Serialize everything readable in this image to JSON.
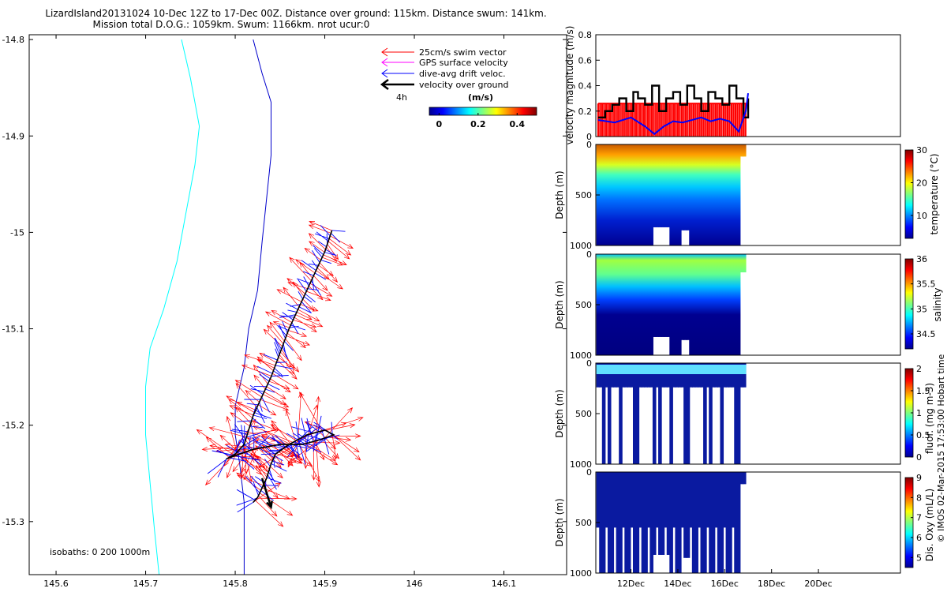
{
  "title": {
    "line1": "LizardIsland20131024 10-Dec 12Z to 17-Dec 00Z. Distance over ground: 115km. Distance swum: 141km.",
    "line2": "Mission total D.O.G.: 1059km. Swum: 1166km. nrot ucur:0"
  },
  "credit": "© IMOS 02-Mar-2015 17:53:00 Hobart time",
  "colors": {
    "swim": "#ff0000",
    "gps": "#ff00ff",
    "drift": "#0000ff",
    "ground": "#000000",
    "isobath_200": "#00ffff",
    "isobath_1000": "#0000cc"
  },
  "chart_data": [
    {
      "type": "line",
      "name": "track map",
      "x_ticks": [
        "145.6",
        "145.7",
        "145.8",
        "145.9",
        "146",
        "146.1"
      ],
      "y_ticks": [
        "-14.8",
        "-14.9",
        "-15",
        "-15.1",
        "-15.2",
        "-15.3"
      ],
      "xlim": [
        145.57,
        146.17
      ],
      "ylim": [
        -15.355,
        -14.795
      ],
      "legend": {
        "items": [
          "25cm/s swim vector",
          "GPS surface velocity",
          "dive-avg drift veloc.",
          "velocity over ground"
        ],
        "time_label": "4h",
        "colorbar_title": "(m/s)",
        "colorbar_ticks": [
          "0",
          "0.2",
          "0.4"
        ],
        "colorbar_range": [
          -0.05,
          0.5
        ]
      },
      "isobaths_label": "isobaths: 0   200   1000m",
      "series": [
        {
          "name": "200m isobath",
          "x": [
            145.74,
            145.75,
            145.76,
            145.755,
            145.745,
            145.735,
            145.72,
            145.705,
            145.7,
            145.7,
            145.705,
            145.71,
            145.715
          ],
          "y": [
            -14.8,
            -14.84,
            -14.89,
            -14.93,
            -14.98,
            -15.03,
            -15.08,
            -15.12,
            -15.16,
            -15.21,
            -15.26,
            -15.31,
            -15.355
          ]
        },
        {
          "name": "1000m isobath",
          "x": [
            145.82,
            145.83,
            145.84,
            145.84,
            145.835,
            145.83,
            145.825,
            145.82,
            145.815,
            145.81,
            145.8,
            145.8,
            145.805,
            145.81,
            145.81,
            145.81
          ],
          "y": [
            -14.8,
            -14.835,
            -14.865,
            -14.92,
            -14.965,
            -15.01,
            -15.06,
            -15.08,
            -15.1,
            -15.14,
            -15.18,
            -15.21,
            -15.24,
            -15.28,
            -15.32,
            -15.355
          ]
        },
        {
          "name": "track",
          "x": [
            145.908,
            145.9,
            145.89,
            145.88,
            145.87,
            145.86,
            145.85,
            145.84,
            145.83,
            145.82,
            145.815,
            145.81,
            145.8,
            145.79,
            145.82,
            145.85,
            145.875,
            145.895,
            145.91,
            145.9,
            145.88,
            145.86,
            145.845,
            145.84,
            145.835,
            145.83,
            145.825,
            145.82
          ],
          "y": [
            -14.998,
            -15.02,
            -15.04,
            -15.06,
            -15.08,
            -15.1,
            -15.125,
            -15.15,
            -15.17,
            -15.19,
            -15.205,
            -15.22,
            -15.23,
            -15.235,
            -15.225,
            -15.22,
            -15.22,
            -15.215,
            -15.21,
            -15.205,
            -15.21,
            -15.22,
            -15.23,
            -15.24,
            -15.255,
            -15.265,
            -15.275,
            -15.28
          ]
        },
        {
          "name": "velocity over ground arrow",
          "x": [
            145.83,
            145.84
          ],
          "y": [
            -15.255,
            -15.285
          ]
        }
      ]
    },
    {
      "type": "line",
      "name": "velocity magnitude",
      "ylabel": "velocity magnitude (m/s)",
      "ylim": [
        0,
        0.8
      ],
      "y_ticks": [
        "0",
        "0.2",
        "0.4",
        "0.6",
        "0.8"
      ],
      "xlim": [
        10.5,
        23.5
      ],
      "series": [
        {
          "name": "swim",
          "x": [
            10.6,
            16.95
          ],
          "y": [
            0.26,
            0.26
          ]
        },
        {
          "name": "drift",
          "x": [
            10.6,
            11.3,
            12.0,
            12.6,
            13.0,
            13.4,
            13.8,
            14.2,
            14.6,
            15.0,
            15.4,
            15.8,
            16.2,
            16.6,
            16.9,
            17.0
          ],
          "y": [
            0.13,
            0.11,
            0.15,
            0.08,
            0.02,
            0.08,
            0.12,
            0.11,
            0.13,
            0.15,
            0.12,
            0.14,
            0.12,
            0.04,
            0.2,
            0.34
          ]
        },
        {
          "name": "ground",
          "x": [
            10.6,
            10.9,
            11.2,
            11.5,
            11.8,
            12.1,
            12.3,
            12.6,
            12.9,
            13.2,
            13.5,
            13.8,
            14.1,
            14.4,
            14.7,
            15.0,
            15.3,
            15.6,
            15.9,
            16.2,
            16.5,
            16.8,
            17.0
          ],
          "y": [
            0.15,
            0.2,
            0.25,
            0.3,
            0.2,
            0.35,
            0.3,
            0.25,
            0.4,
            0.2,
            0.3,
            0.35,
            0.25,
            0.4,
            0.3,
            0.2,
            0.35,
            0.3,
            0.25,
            0.4,
            0.3,
            0.15,
            0.3
          ]
        }
      ]
    },
    {
      "type": "scatter",
      "name": "temperature section",
      "ylabel": "Depth (m)",
      "cbar_label": "temperature (°C)",
      "cbar_ticks": [
        "10",
        "20",
        "30"
      ],
      "cbar_range": [
        3,
        30
      ],
      "y_ticks": [
        "0",
        "500",
        "1000"
      ],
      "ylim": [
        1000,
        0
      ]
    },
    {
      "type": "scatter",
      "name": "salinity section",
      "ylabel": "Depth (m)",
      "cbar_label": "salinity",
      "cbar_ticks": [
        "34.5",
        "35",
        "35.5",
        "36"
      ],
      "cbar_range": [
        34.2,
        36
      ],
      "y_ticks": [
        "0",
        "500",
        "1000"
      ],
      "ylim": [
        1000,
        0
      ]
    },
    {
      "type": "scatter",
      "name": "fluorescence section",
      "ylabel": "Depth (m)",
      "cbar_label": "fluor. (mg m-3)",
      "cbar_ticks": [
        "0",
        "0.5",
        "1",
        "1.5",
        "2"
      ],
      "cbar_range": [
        0,
        2
      ],
      "y_ticks": [
        "0",
        "500",
        "1000"
      ],
      "ylim": [
        1000,
        0
      ]
    },
    {
      "type": "scatter",
      "name": "oxygen section",
      "ylabel": "Depth (m)",
      "cbar_label": "Dis. Oxy (mL/L)",
      "cbar_ticks": [
        "5",
        "6",
        "7",
        "8",
        "9"
      ],
      "cbar_range": [
        4.5,
        9
      ],
      "y_ticks": [
        "0",
        "500",
        "1000"
      ],
      "ylim": [
        1000,
        0
      ],
      "x_ticks": [
        "12Dec",
        "14Dec",
        "16Dec",
        "18Dec",
        "20Dec"
      ]
    }
  ]
}
